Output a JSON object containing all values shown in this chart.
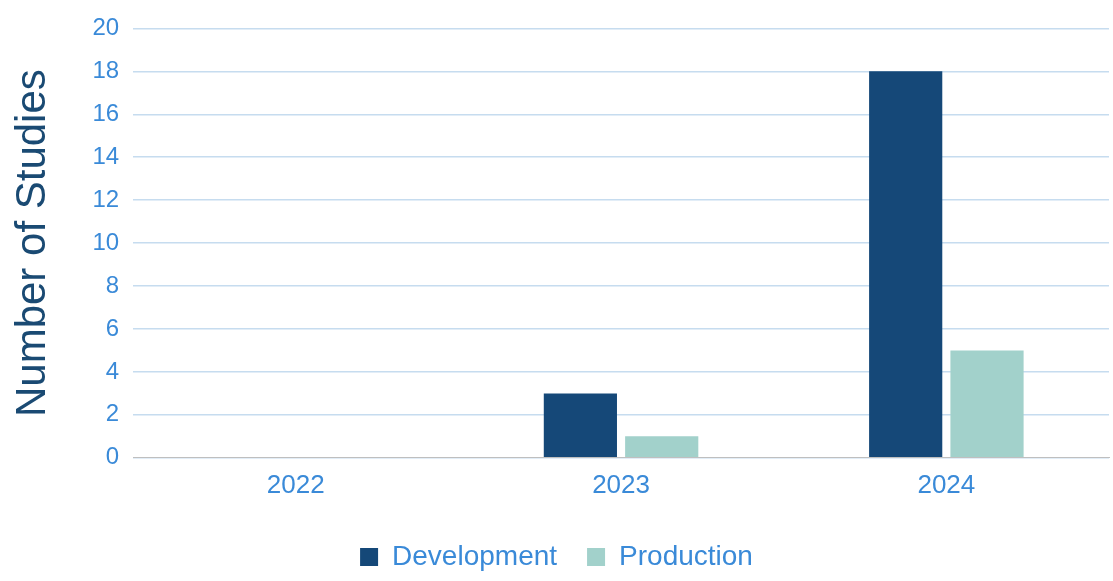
{
  "chart_data": {
    "type": "bar",
    "ylabel": "Number of Studies",
    "categories": [
      "2022",
      "2023",
      "2024"
    ],
    "series": [
      {
        "name": "Development",
        "color": "#154878",
        "values": [
          0,
          3,
          18
        ]
      },
      {
        "name": "Production",
        "color": "#a2d1cb",
        "values": [
          0,
          1,
          5
        ]
      }
    ],
    "ylim": [
      0,
      20
    ],
    "yticks": [
      0,
      2,
      4,
      6,
      8,
      10,
      12,
      14,
      16,
      18,
      20
    ],
    "grid": "y",
    "legend": "bottom"
  }
}
